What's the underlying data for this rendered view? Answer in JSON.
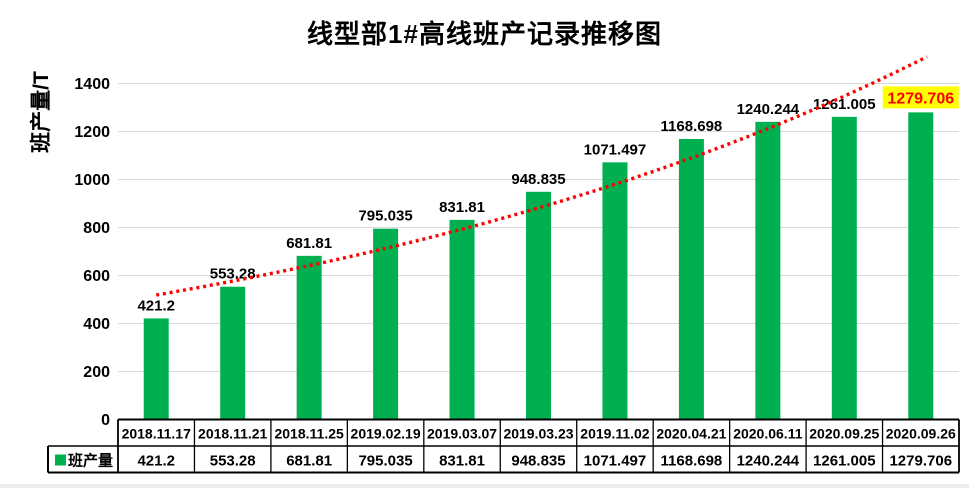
{
  "title": "线型部1#高线班产记录推移图",
  "y_axis": {
    "label": "班产量/T",
    "tick_values": [
      0,
      200,
      400,
      600,
      800,
      1000,
      1200,
      1400
    ]
  },
  "colors": {
    "bar": "#00B050",
    "trendline": "#FF0000",
    "highlight_background": "#FFFF00",
    "highlight_text": "#FF0000",
    "gridline": "#D9D9D9",
    "table_border": "#000000",
    "text": "#000000"
  },
  "chart_data": {
    "type": "bar",
    "title": "线型部1#高线班产记录推移图",
    "xlabel": "",
    "ylabel": "班产量/T",
    "ylim": [
      0,
      1400
    ],
    "ytick_step": 200,
    "grid": true,
    "categories": [
      "2018.11.17",
      "2018.11.21",
      "2018.11.25",
      "2019.02.19",
      "2019.03.07",
      "2019.03.23",
      "2019.11.02",
      "2020.04.21",
      "2020.06.11",
      "2020.09.25",
      "2020.09.26"
    ],
    "series": [
      {
        "name": "班产量",
        "values": [
          421.2,
          553.28,
          681.81,
          795.035,
          831.81,
          948.835,
          1071.497,
          1168.698,
          1240.244,
          1261.005,
          1279.706
        ]
      }
    ],
    "data_labels": true,
    "highlighted_label": {
      "index": 10,
      "text": "1279.706",
      "text_color": "#FF0000",
      "background": "#FFFF00"
    },
    "trendline": {
      "type": "exponential",
      "line_style": "dotted",
      "color": "#FF0000",
      "extend_past_last_point": true
    },
    "data_table": {
      "show": true,
      "legend_label": "班产量",
      "legend_marker": "green-square"
    }
  }
}
